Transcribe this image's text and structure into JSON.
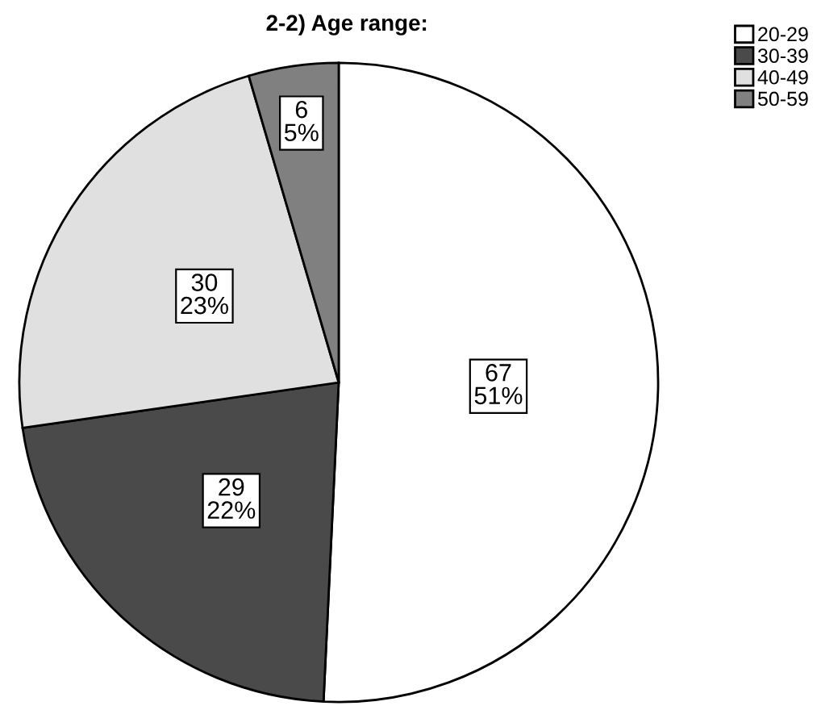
{
  "chart_data": {
    "type": "pie",
    "title": "2-2) Age range:",
    "categories": [
      "20-29",
      "30-39",
      "40-49",
      "50-59"
    ],
    "values": [
      67,
      29,
      30,
      6
    ],
    "value_labels": [
      "67\n51%",
      "29\n22%",
      "30\n23%",
      "6\n5%"
    ],
    "colors": [
      "#ffffff",
      "#4a4a4a",
      "#e0e0e0",
      "#808080"
    ],
    "legend": "top right"
  }
}
